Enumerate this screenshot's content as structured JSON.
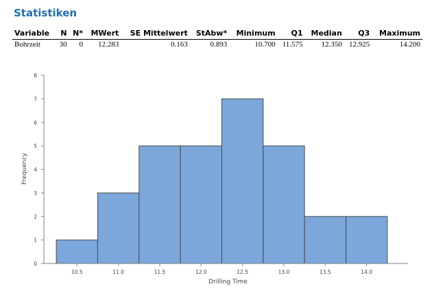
{
  "section_title": "Statistiken",
  "stats_table": {
    "headers": [
      "Variable",
      "N",
      "N*",
      "MWert",
      "SE Mittelwert",
      "StAbw*",
      "Minimum",
      "Q1",
      "Median",
      "Q3",
      "Maximum"
    ],
    "rows": [
      [
        "Bohrzeit",
        "30",
        "0",
        "12.283",
        "0.163",
        "0.893",
        "10.700",
        "11.575",
        "12.350",
        "12.925",
        "14.200"
      ]
    ]
  },
  "chart_data": {
    "type": "bar",
    "subtype": "histogram",
    "bins": [
      {
        "from": 10.25,
        "to": 10.75,
        "value": 1
      },
      {
        "from": 10.75,
        "to": 11.25,
        "value": 3
      },
      {
        "from": 11.25,
        "to": 11.75,
        "value": 5
      },
      {
        "from": 11.75,
        "to": 12.25,
        "value": 5
      },
      {
        "from": 12.25,
        "to": 12.75,
        "value": 7
      },
      {
        "from": 12.75,
        "to": 13.25,
        "value": 5
      },
      {
        "from": 13.25,
        "to": 13.75,
        "value": 2
      },
      {
        "from": 13.75,
        "to": 14.25,
        "value": 2
      }
    ],
    "x_ticks": [
      "10.5",
      "11.0",
      "11.5",
      "12.0",
      "12.5",
      "13.0",
      "13.5",
      "14.0"
    ],
    "y_ticks": [
      "0",
      "1",
      "2",
      "3",
      "4",
      "5",
      "6",
      "7",
      "8"
    ],
    "xlim": [
      10.1,
      14.5
    ],
    "ylim": [
      0,
      8
    ],
    "xlabel": "Drilling Time",
    "ylabel": "Frequency",
    "grid": false,
    "bar_color": "#7ba7da",
    "bar_edge_color": "#4a4a4a"
  }
}
